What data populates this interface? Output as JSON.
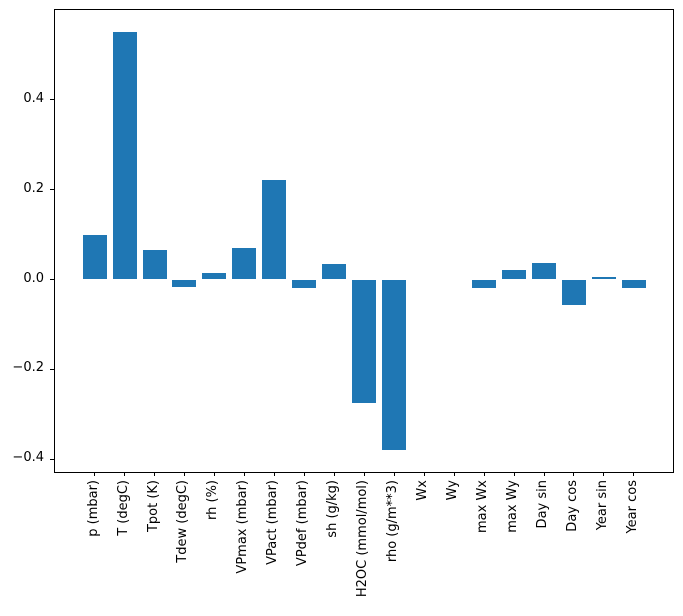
{
  "figure": {
    "background": "#ffffff",
    "spine_color": "#000000",
    "tick_color": "#000000",
    "text_color": "#000000"
  },
  "chart_data": {
    "type": "bar",
    "title": "",
    "xlabel": "",
    "ylabel": "",
    "categories": [
      "p (mbar)",
      "T (degC)",
      "Tpot (K)",
      "Tdew (degC)",
      "rh (%)",
      "VPmax (mbar)",
      "VPact (mbar)",
      "VPdef (mbar)",
      "sh (g/kg)",
      "H2OC (mmol/mol)",
      "rho (g/m**3)",
      "Wx",
      "Wy",
      "max Wx",
      "max Wy",
      "Day sin",
      "Day cos",
      "Year sin",
      "Year cos"
    ],
    "values": [
      0.1,
      0.55,
      0.065,
      -0.016,
      0.015,
      0.069,
      0.221,
      -0.018,
      0.035,
      -0.274,
      -0.38,
      0.0,
      0.0,
      -0.02,
      0.021,
      0.036,
      -0.056,
      0.005,
      -0.02
    ],
    "bar_color": "#1f77b4",
    "yticks": [
      0.4,
      0.2,
      0.0,
      -0.2,
      -0.4
    ],
    "ytick_labels": [
      "0.4",
      "0.2",
      "0.0",
      "−0.2",
      "−0.4"
    ],
    "ylim": [
      -0.43,
      0.6
    ],
    "xtick_rotation": 90,
    "grid": false,
    "legend": "none",
    "orientation": "vertical"
  }
}
